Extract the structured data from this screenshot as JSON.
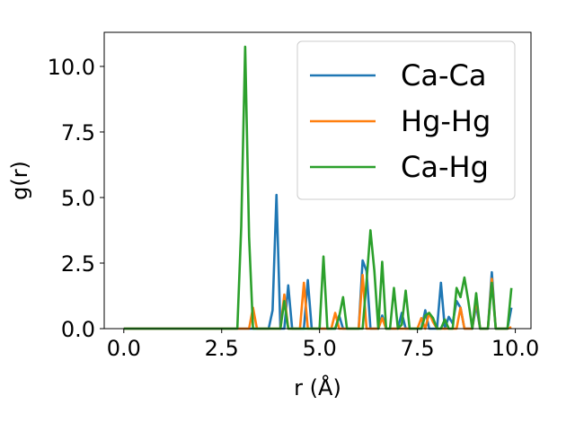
{
  "chart_data": {
    "type": "line",
    "title": "",
    "xlabel": "r (Å)",
    "ylabel": "g(r)",
    "xlim": [
      -0.5,
      10.4
    ],
    "ylim": [
      0,
      11.3
    ],
    "xticks": [
      0.0,
      2.5,
      5.0,
      7.5,
      10.0
    ],
    "xtick_labels": [
      "0.0",
      "2.5",
      "5.0",
      "7.5",
      "10.0"
    ],
    "yticks": [
      0.0,
      2.5,
      5.0,
      7.5,
      10.0
    ],
    "ytick_labels": [
      "0.0",
      "2.5",
      "5.0",
      "7.5",
      "10.0"
    ],
    "grid": false,
    "legend_position": "upper-right",
    "series": [
      {
        "name": "Ca-Ca",
        "color": "#1f77b4",
        "points": [
          [
            0.0,
            0
          ],
          [
            2.8,
            0
          ],
          [
            3.7,
            0
          ],
          [
            3.8,
            0.7
          ],
          [
            3.9,
            5.1
          ],
          [
            4.0,
            0
          ],
          [
            4.1,
            0
          ],
          [
            4.2,
            1.65
          ],
          [
            4.3,
            0
          ],
          [
            4.6,
            0
          ],
          [
            4.7,
            1.85
          ],
          [
            4.8,
            0
          ],
          [
            5.4,
            0
          ],
          [
            5.5,
            0.5
          ],
          [
            5.6,
            0
          ],
          [
            6.0,
            0
          ],
          [
            6.1,
            2.6
          ],
          [
            6.2,
            2.2
          ],
          [
            6.3,
            0
          ],
          [
            6.5,
            0
          ],
          [
            6.6,
            0.5
          ],
          [
            6.7,
            0
          ],
          [
            7.0,
            0
          ],
          [
            7.1,
            0.6
          ],
          [
            7.2,
            0
          ],
          [
            7.6,
            0
          ],
          [
            7.7,
            0.7
          ],
          [
            7.8,
            0
          ],
          [
            8.0,
            0
          ],
          [
            8.1,
            1.75
          ],
          [
            8.2,
            0
          ],
          [
            8.3,
            0.45
          ],
          [
            8.4,
            0.2
          ],
          [
            8.5,
            1.05
          ],
          [
            8.6,
            0.8
          ],
          [
            8.7,
            0
          ],
          [
            8.9,
            0
          ],
          [
            9.0,
            0.9
          ],
          [
            9.1,
            0
          ],
          [
            9.3,
            0
          ],
          [
            9.4,
            2.15
          ],
          [
            9.5,
            0
          ],
          [
            9.8,
            0
          ],
          [
            9.9,
            0.8
          ]
        ]
      },
      {
        "name": "Hg-Hg",
        "color": "#ff7f0e",
        "points": [
          [
            0.0,
            0
          ],
          [
            3.2,
            0
          ],
          [
            3.3,
            0.8
          ],
          [
            3.4,
            0
          ],
          [
            4.0,
            0
          ],
          [
            4.1,
            1.3
          ],
          [
            4.2,
            0
          ],
          [
            4.5,
            0
          ],
          [
            4.6,
            1.75
          ],
          [
            4.7,
            0
          ],
          [
            5.3,
            0
          ],
          [
            5.4,
            0.6
          ],
          [
            5.5,
            0
          ],
          [
            6.0,
            0
          ],
          [
            6.1,
            2.05
          ],
          [
            6.2,
            0
          ],
          [
            6.5,
            0
          ],
          [
            6.6,
            0.4
          ],
          [
            6.7,
            0
          ],
          [
            7.5,
            0
          ],
          [
            7.6,
            0.4
          ],
          [
            7.7,
            0
          ],
          [
            7.8,
            0.6
          ],
          [
            7.9,
            0.25
          ],
          [
            8.0,
            0
          ],
          [
            8.5,
            0
          ],
          [
            8.6,
            0.8
          ],
          [
            8.7,
            0
          ],
          [
            8.9,
            0
          ],
          [
            9.0,
            1.15
          ],
          [
            9.1,
            0
          ],
          [
            9.3,
            0
          ],
          [
            9.4,
            1.9
          ],
          [
            9.5,
            0
          ],
          [
            9.8,
            0
          ],
          [
            9.9,
            0.05
          ]
        ]
      },
      {
        "name": "Ca-Hg",
        "color": "#2ca02c",
        "points": [
          [
            0.0,
            0
          ],
          [
            2.8,
            0
          ],
          [
            2.9,
            0
          ],
          [
            3.0,
            3.9
          ],
          [
            3.1,
            10.75
          ],
          [
            3.2,
            3.5
          ],
          [
            3.3,
            0
          ],
          [
            3.5,
            0
          ],
          [
            3.6,
            0
          ],
          [
            4.0,
            0
          ],
          [
            4.1,
            1.05
          ],
          [
            4.2,
            0
          ],
          [
            5.0,
            0
          ],
          [
            5.1,
            2.75
          ],
          [
            5.2,
            0
          ],
          [
            5.4,
            0
          ],
          [
            5.5,
            0.45
          ],
          [
            5.6,
            1.2
          ],
          [
            5.7,
            0
          ],
          [
            6.1,
            0
          ],
          [
            6.2,
            1.8
          ],
          [
            6.3,
            3.75
          ],
          [
            6.4,
            2.2
          ],
          [
            6.5,
            0
          ],
          [
            6.6,
            2.55
          ],
          [
            6.7,
            0
          ],
          [
            6.8,
            0
          ],
          [
            6.9,
            1.55
          ],
          [
            7.0,
            0
          ],
          [
            7.1,
            0.15
          ],
          [
            7.2,
            1.45
          ],
          [
            7.3,
            0
          ],
          [
            7.6,
            0
          ],
          [
            7.7,
            0.5
          ],
          [
            7.8,
            0.6
          ],
          [
            7.9,
            0.4
          ],
          [
            8.0,
            0
          ],
          [
            8.1,
            0
          ],
          [
            8.2,
            0.35
          ],
          [
            8.3,
            0
          ],
          [
            8.4,
            0
          ],
          [
            8.5,
            1.55
          ],
          [
            8.6,
            1.2
          ],
          [
            8.7,
            1.95
          ],
          [
            8.8,
            1.05
          ],
          [
            8.9,
            0
          ],
          [
            9.0,
            1.35
          ],
          [
            9.1,
            0
          ],
          [
            9.3,
            0
          ],
          [
            9.4,
            1.75
          ],
          [
            9.5,
            0
          ],
          [
            9.8,
            0
          ],
          [
            9.9,
            1.55
          ]
        ]
      }
    ]
  }
}
